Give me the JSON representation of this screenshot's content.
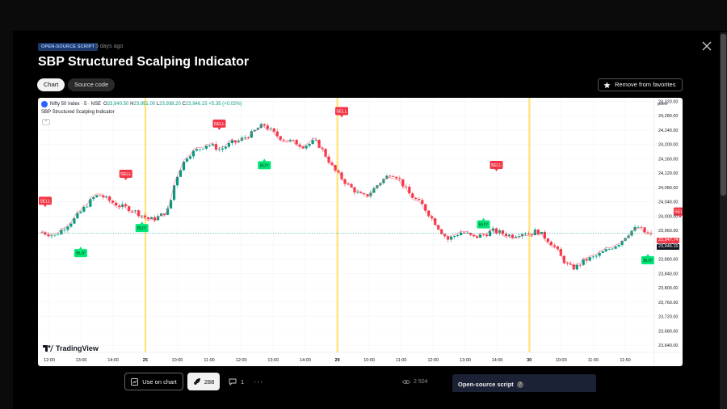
{
  "script": {
    "badge": "OPEN-SOURCE SCRIPT",
    "posted": "3 days ago",
    "title": "SBP Structured Scalping Indicator"
  },
  "tabs": [
    {
      "label": "Chart",
      "active": true
    },
    {
      "label": "Source code",
      "active": false
    }
  ],
  "favorites_button": "Remove from favorites",
  "chart": {
    "symbol": "Nifty 50 Index · 5 · NSE",
    "ohlc": {
      "o_label": "O",
      "o": "23,940.50",
      "h_label": "H",
      "h": "23,951.00",
      "l_label": "L",
      "l": "23,938.20",
      "c_label": "C",
      "c": "23,946.15",
      "change": "+5.35 (+0.02%)"
    },
    "indicator_name": "SBP Structured Scalping Indicator",
    "collapse_glyph": "^",
    "price_axis_unit": "point",
    "last_price_red": "23,947.74",
    "last_price": "23,946.15",
    "logo_text": "TradingView"
  },
  "chart_data": {
    "type": "candlestick",
    "symbol": "Nifty 50 Index",
    "interval": "5",
    "exchange": "NSE",
    "y_ticks": [
      "24,320.00",
      "24,280.00",
      "24,240.00",
      "24,200.00",
      "24,160.00",
      "24,120.00",
      "24,080.00",
      "24,040.00",
      "24,000.00",
      "23,960.00",
      "23,920.00",
      "23,880.00",
      "23,840.00",
      "23,800.00",
      "23,760.00",
      "23,720.00",
      "23,680.00",
      "23,640.00"
    ],
    "ylim": [
      23620,
      24330
    ],
    "x_ticks": [
      "12:00",
      "13:00",
      "14:00",
      "25",
      "10:00",
      "11:00",
      "12:00",
      "13:00",
      "14:00",
      "29",
      "10:00",
      "11:00",
      "12:00",
      "13:00",
      "14:00",
      "30",
      "10:00",
      "11:00",
      "11:50"
    ],
    "day_separators": [
      "25",
      "29",
      "30"
    ],
    "price_path": [
      23955,
      23950,
      23945,
      23960,
      23975,
      23990,
      24010,
      24030,
      24050,
      24060,
      24050,
      24040,
      24030,
      24025,
      24020,
      24010,
      24000,
      23990,
      23995,
      24005,
      24020,
      24100,
      24140,
      24170,
      24180,
      24190,
      24200,
      24195,
      24185,
      24195,
      24205,
      24210,
      24220,
      24230,
      24245,
      24255,
      24240,
      24225,
      24215,
      24210,
      24205,
      24195,
      24200,
      24210,
      24190,
      24160,
      24130,
      24110,
      24090,
      24075,
      24060,
      24055,
      24070,
      24090,
      24105,
      24120,
      24110,
      24085,
      24060,
      24045,
      24030,
      24005,
      23980,
      23955,
      23935,
      23945,
      23955,
      23950,
      23940,
      23945,
      23950,
      23960,
      23955,
      23950,
      23945,
      23950,
      23955,
      23950,
      23960,
      23945,
      23930,
      23910,
      23880,
      23860,
      23855,
      23870,
      23880,
      23885,
      23895,
      23905,
      23915,
      23925,
      23945,
      23960,
      23970,
      23955,
      23948
    ],
    "annotations": [
      {
        "label": "SELL",
        "x": 1,
        "price": 24025
      },
      {
        "label": "BUY",
        "x": 12,
        "price": 23915
      },
      {
        "label": "SELL",
        "x": 26,
        "price": 24100
      },
      {
        "label": "BUY",
        "x": 31,
        "price": 23985
      },
      {
        "label": "SELL",
        "x": 55,
        "price": 24240
      },
      {
        "label": "BUY",
        "x": 69,
        "price": 24160
      },
      {
        "label": "SELL",
        "x": 93,
        "price": 24275
      },
      {
        "label": "SELL",
        "x": 141,
        "price": 24125
      },
      {
        "label": "BUY",
        "x": 137,
        "price": 23995
      },
      {
        "label": "SELL",
        "x": 198,
        "price": 23995
      },
      {
        "label": "BUY",
        "x": 188,
        "price": 23895
      },
      {
        "label": "BUY",
        "x": 237,
        "price": 23845
      },
      {
        "label": "SELL",
        "x": 256,
        "price": 23955
      }
    ],
    "colors": {
      "up": "#089981",
      "down": "#f23645",
      "separator": "#ffe57f",
      "sell": "#f23645",
      "buy": "#00e676"
    }
  },
  "actions": {
    "use_on_chart": "Use on chart",
    "boosts": "288",
    "comments": "1",
    "more": "···",
    "views": "2 504"
  },
  "open_source_panel": {
    "title": "Open-source script",
    "help": "?"
  }
}
